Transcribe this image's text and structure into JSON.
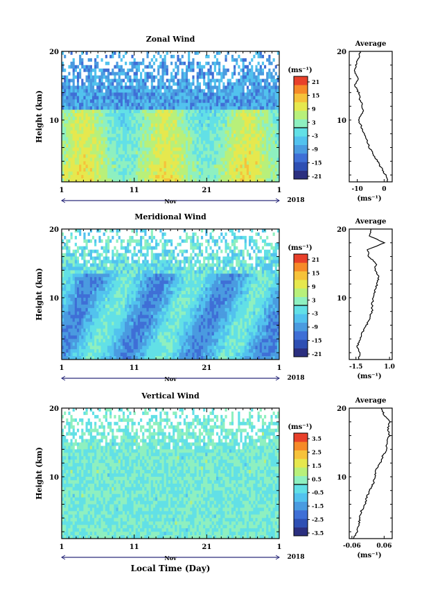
{
  "figure": {
    "xlabel": "Local Time (Day)",
    "year": "2018",
    "month": "Nov"
  },
  "colors": {
    "scale": [
      "#2b2f7f",
      "#2e4fb3",
      "#3f6fd6",
      "#4a9be0",
      "#52c2ee",
      "#62e0e6",
      "#8ef0c0",
      "#b8f07a",
      "#e6e84e",
      "#f6c23a",
      "#f68a28",
      "#e8402a"
    ]
  },
  "chart_data": [
    {
      "type": "heatmap",
      "title": "Zonal Wind",
      "ylabel": "Height (km)",
      "unit": "(ms⁻¹)",
      "xticks": [
        "1",
        "11",
        "21",
        "1"
      ],
      "yticks": [
        "10",
        "20"
      ],
      "ylim": [
        1,
        20
      ],
      "colorbar_ticks": [
        "21",
        "15",
        "9",
        "3",
        "-3",
        "-9",
        "-15",
        "-21"
      ],
      "colorbar_range": [
        -24,
        24
      ],
      "profile": {
        "title": "Average",
        "xlabel": "(ms⁻¹)",
        "xticks": [
          "-10",
          "0"
        ],
        "xlim": [
          -13,
          3
        ],
        "yticks": [
          "10",
          "20"
        ],
        "height": [
          1,
          2,
          3,
          4,
          5,
          6,
          7,
          8,
          9,
          10,
          11,
          12,
          13,
          14,
          15,
          16,
          17,
          18,
          19,
          20
        ],
        "value": [
          1.5,
          0.5,
          -1,
          -2.5,
          -4,
          -5.5,
          -6.5,
          -7.5,
          -8.5,
          -9.5,
          -8,
          -8,
          -9,
          -9.5,
          -11,
          -9.5,
          -11,
          -10.5,
          -9.5,
          -9
        ]
      }
    },
    {
      "type": "heatmap",
      "title": "Meridional Wind",
      "ylabel": "Height (km)",
      "unit": "(ms⁻¹)",
      "xticks": [
        "1",
        "11",
        "21",
        "1"
      ],
      "yticks": [
        "10",
        "20"
      ],
      "ylim": [
        1,
        20
      ],
      "colorbar_ticks": [
        "21",
        "15",
        "9",
        "3",
        "-3",
        "-9",
        "-15",
        "-21"
      ],
      "colorbar_range": [
        -24,
        24
      ],
      "profile": {
        "title": "Average",
        "xlabel": "(ms⁻¹)",
        "xticks": [
          "-1.5",
          "1.0"
        ],
        "xlim": [
          -2,
          1.2
        ],
        "yticks": [
          "10",
          "20"
        ],
        "height": [
          1,
          2,
          3,
          4,
          5,
          6,
          7,
          8,
          9,
          10,
          11,
          12,
          13,
          14,
          15,
          16,
          17,
          18,
          19,
          20
        ],
        "value": [
          -1.3,
          -1.2,
          -1.4,
          -1.2,
          -1.0,
          -0.7,
          -0.5,
          -0.3,
          -0.3,
          -0.2,
          -0.1,
          0.1,
          0.2,
          -0.1,
          0.0,
          -0.6,
          -0.6,
          0.6,
          -0.5,
          -0.4
        ]
      }
    },
    {
      "type": "heatmap",
      "title": "Vertical Wind",
      "ylabel": "Height (km)",
      "unit": "(ms⁻¹)",
      "xticks": [
        "1",
        "11",
        "21",
        "1"
      ],
      "yticks": [
        "10",
        "20"
      ],
      "ylim": [
        1,
        20
      ],
      "colorbar_ticks": [
        "3.5",
        "2.5",
        "1.5",
        "0.5",
        "-0.5",
        "-1.5",
        "-2.5",
        "-3.5"
      ],
      "colorbar_range": [
        -4,
        4
      ],
      "profile": {
        "title": "Average",
        "xlabel": "(ms⁻¹)",
        "xticks": [
          "-0.06",
          "0.06"
        ],
        "xlim": [
          -0.07,
          0.09
        ],
        "yticks": [
          "10",
          "20"
        ],
        "height": [
          1,
          2,
          3,
          4,
          5,
          6,
          7,
          8,
          9,
          10,
          11,
          12,
          13,
          14,
          15,
          16,
          17,
          18,
          19,
          20
        ],
        "value": [
          -0.055,
          -0.04,
          -0.035,
          -0.03,
          -0.025,
          -0.01,
          -0.005,
          0.005,
          0.02,
          0.025,
          0.03,
          0.045,
          0.055,
          0.07,
          0.07,
          0.08,
          0.075,
          0.08,
          0.06,
          0.05
        ]
      }
    }
  ]
}
